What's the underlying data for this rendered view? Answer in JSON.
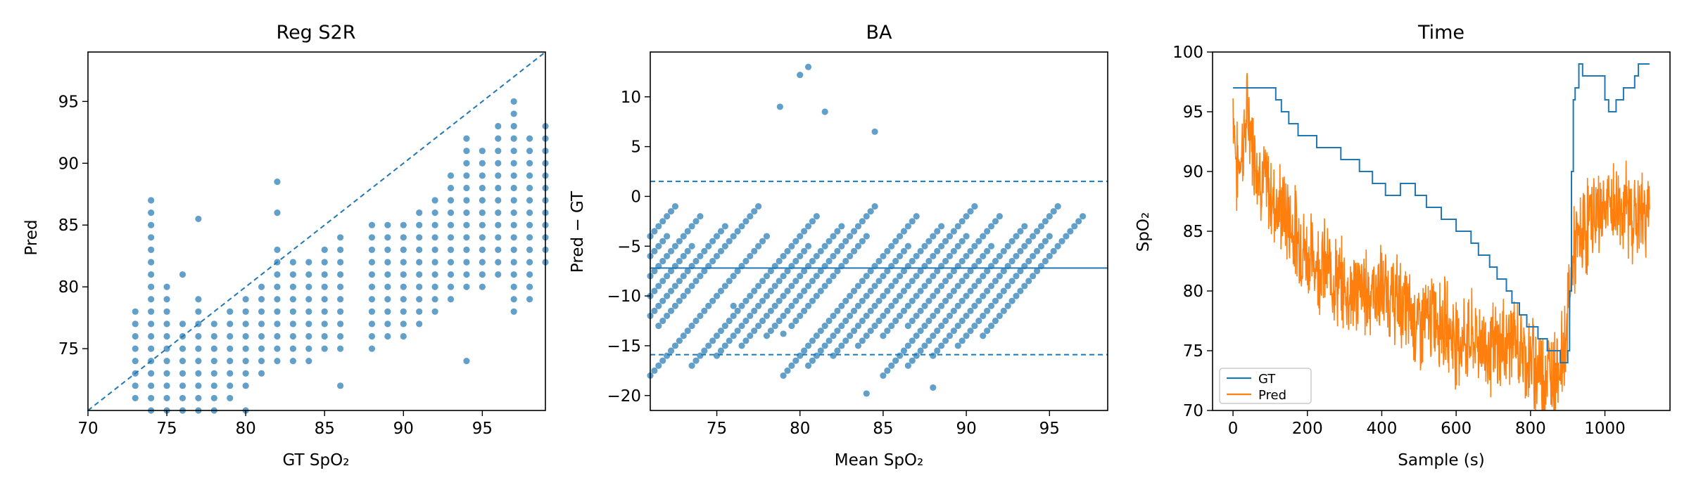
{
  "colors": {
    "series": "#1f77b4",
    "pred": "#ff7f0e",
    "frame": "#000000"
  },
  "chart_data": [
    {
      "type": "scatter",
      "title": "Reg S2R",
      "xlabel": "GT SpO₂",
      "ylabel": "Pred",
      "xlim": [
        70,
        99
      ],
      "ylim": [
        70,
        99
      ],
      "xticks": [
        "70",
        "75",
        "80",
        "85",
        "90",
        "95"
      ],
      "yticks": [
        "75",
        "80",
        "85",
        "90",
        "95"
      ],
      "identity_line": {
        "style": "dashed",
        "from": [
          70,
          70
        ],
        "to": [
          99,
          99
        ]
      },
      "series": [
        {
          "columns": [
            {
              "x": 73,
              "y": [
                71,
                72,
                73,
                74,
                75,
                76,
                77,
                78
              ]
            },
            {
              "x": 74,
              "y": [
                70,
                71,
                72,
                73,
                74,
                75,
                76,
                77,
                78,
                79,
                80,
                81,
                82,
                83,
                84,
                85,
                86,
                87
              ]
            },
            {
              "x": 75,
              "y": [
                70,
                71,
                72,
                73,
                74,
                75,
                76,
                77,
                78,
                79,
                80
              ]
            },
            {
              "x": 76,
              "y": [
                70,
                71,
                72,
                73,
                74,
                75,
                76,
                77,
                81
              ]
            },
            {
              "x": 77,
              "y": [
                70,
                71,
                72,
                73,
                74,
                75,
                76,
                77,
                78,
                79,
                85.5
              ]
            },
            {
              "x": 78,
              "y": [
                70,
                71,
                72,
                73,
                74,
                75,
                76,
                77
              ]
            },
            {
              "x": 79,
              "y": [
                71,
                72,
                73,
                74,
                75,
                76,
                77,
                78
              ]
            },
            {
              "x": 80,
              "y": [
                70,
                72,
                73,
                74,
                75,
                76,
                77,
                78,
                79
              ]
            },
            {
              "x": 81,
              "y": [
                73,
                74,
                75,
                76,
                77,
                78,
                79,
                80
              ]
            },
            {
              "x": 82,
              "y": [
                74,
                75,
                76,
                77,
                78,
                79,
                80,
                81,
                82,
                83,
                86,
                88.5
              ]
            },
            {
              "x": 83,
              "y": [
                74,
                75,
                76,
                77,
                78,
                79,
                80,
                81,
                82
              ]
            },
            {
              "x": 84,
              "y": [
                74,
                75,
                76,
                77,
                78,
                79,
                80,
                81,
                82
              ]
            },
            {
              "x": 85,
              "y": [
                75,
                76,
                77,
                78,
                79,
                80,
                81,
                82,
                83
              ]
            },
            {
              "x": 86,
              "y": [
                72,
                75,
                76,
                77,
                78,
                79,
                80,
                81,
                82,
                83,
                84
              ]
            },
            {
              "x": 88,
              "y": [
                75,
                76,
                77,
                78,
                79,
                80,
                81,
                82,
                83,
                84,
                85
              ]
            },
            {
              "x": 89,
              "y": [
                76,
                77,
                78,
                79,
                80,
                81,
                82,
                83,
                84,
                85
              ]
            },
            {
              "x": 90,
              "y": [
                76,
                77,
                78,
                79,
                80,
                81,
                82,
                83,
                84,
                85
              ]
            },
            {
              "x": 91,
              "y": [
                77,
                78,
                79,
                80,
                81,
                82,
                83,
                84,
                85,
                86
              ]
            },
            {
              "x": 92,
              "y": [
                78,
                79,
                80,
                81,
                82,
                83,
                84,
                85,
                86,
                87
              ]
            },
            {
              "x": 93,
              "y": [
                79,
                80,
                81,
                82,
                83,
                84,
                85,
                86,
                87,
                88,
                89
              ]
            },
            {
              "x": 94,
              "y": [
                74,
                80,
                81,
                82,
                83,
                84,
                85,
                86,
                87,
                88,
                89,
                90,
                91,
                92
              ]
            },
            {
              "x": 95,
              "y": [
                80,
                81,
                82,
                83,
                84,
                85,
                86,
                87,
                88,
                89,
                90,
                91
              ]
            },
            {
              "x": 96,
              "y": [
                81,
                82,
                83,
                84,
                85,
                86,
                87,
                88,
                89,
                90,
                91,
                92,
                93
              ]
            },
            {
              "x": 97,
              "y": [
                78,
                79,
                80,
                81,
                82,
                83,
                84,
                85,
                86,
                87,
                88,
                89,
                90,
                91,
                92,
                93,
                94,
                95
              ]
            },
            {
              "x": 98,
              "y": [
                79,
                80,
                81,
                82,
                83,
                84,
                85,
                86,
                87,
                88,
                89,
                90,
                91,
                92
              ]
            },
            {
              "x": 99,
              "y": [
                82,
                83,
                84,
                85,
                86,
                87,
                88,
                89,
                90,
                91,
                92,
                93
              ]
            }
          ]
        }
      ]
    },
    {
      "type": "scatter",
      "title": "BA",
      "xlabel": "Mean SpO₂",
      "ylabel": "Pred − GT",
      "xlim": [
        71,
        98.5
      ],
      "ylim": [
        -21.5,
        14.5
      ],
      "xticks": [
        "75",
        "80",
        "85",
        "90",
        "95"
      ],
      "yticks": [
        "10",
        "5",
        "0",
        "−5",
        "−10",
        "−15",
        "−20"
      ],
      "mean_diff": -7.2,
      "limits_of_agreement": [
        1.5,
        -15.9
      ],
      "diagonal_band_gts": [
        73,
        74,
        75,
        76,
        77,
        78,
        80,
        82,
        83,
        84,
        85,
        86,
        88,
        89,
        90,
        91,
        92,
        93,
        94,
        95,
        96,
        97,
        98
      ],
      "diff_spread": [
        -18,
        -1
      ],
      "outliers": [
        {
          "x": 80.5,
          "y": 13
        },
        {
          "x": 80,
          "y": 12.2
        },
        {
          "x": 81.5,
          "y": 8.5
        },
        {
          "x": 78.8,
          "y": 9
        },
        {
          "x": 84.5,
          "y": 6.5
        },
        {
          "x": 76,
          "y": -11
        },
        {
          "x": 79,
          "y": -13.8
        },
        {
          "x": 84,
          "y": -19.8
        },
        {
          "x": 88,
          "y": -19.2
        }
      ]
    },
    {
      "type": "line",
      "title": "Time",
      "xlabel": "Sample (s)",
      "ylabel": "SpO₂",
      "xlim": [
        -55,
        1175
      ],
      "ylim": [
        70,
        100
      ],
      "xticks": [
        "0",
        "200",
        "400",
        "600",
        "800",
        "1000"
      ],
      "yticks": [
        "70",
        "75",
        "80",
        "85",
        "90",
        "95",
        "100"
      ],
      "legend": "lower-left",
      "series": [
        {
          "name": "GT",
          "step": true,
          "points": [
            [
              0,
              97
            ],
            [
              110,
              97
            ],
            [
              115,
              96
            ],
            [
              130,
              95
            ],
            [
              150,
              94
            ],
            [
              175,
              93
            ],
            [
              225,
              92
            ],
            [
              290,
              91
            ],
            [
              340,
              90
            ],
            [
              375,
              89
            ],
            [
              410,
              88
            ],
            [
              450,
              89
            ],
            [
              490,
              88
            ],
            [
              520,
              87
            ],
            [
              560,
              86
            ],
            [
              580,
              86
            ],
            [
              600,
              85
            ],
            [
              640,
              84
            ],
            [
              660,
              83
            ],
            [
              690,
              82
            ],
            [
              710,
              81
            ],
            [
              735,
              80
            ],
            [
              750,
              79
            ],
            [
              770,
              78
            ],
            [
              790,
              77
            ],
            [
              820,
              76
            ],
            [
              845,
              75
            ],
            [
              880,
              74
            ],
            [
              900,
              75
            ],
            [
              905,
              80
            ],
            [
              910,
              90
            ],
            [
              915,
              96
            ],
            [
              920,
              97
            ],
            [
              930,
              99
            ],
            [
              940,
              98
            ],
            [
              1000,
              96
            ],
            [
              1010,
              95
            ],
            [
              1030,
              96
            ],
            [
              1050,
              97
            ],
            [
              1080,
              98
            ],
            [
              1090,
              99
            ],
            [
              1120,
              99
            ]
          ]
        },
        {
          "name": "Pred",
          "step": false,
          "trend": [
            [
              0,
              96
            ],
            [
              10,
              90
            ],
            [
              25,
              92
            ],
            [
              40,
              95
            ],
            [
              50,
              93
            ],
            [
              70,
              90
            ],
            [
              100,
              88
            ],
            [
              150,
              86
            ],
            [
              200,
              83
            ],
            [
              250,
              82
            ],
            [
              300,
              80
            ],
            [
              350,
              80
            ],
            [
              400,
              80
            ],
            [
              450,
              79
            ],
            [
              500,
              77
            ],
            [
              550,
              78
            ],
            [
              600,
              76
            ],
            [
              650,
              76
            ],
            [
              700,
              75
            ],
            [
              750,
              76
            ],
            [
              800,
              74
            ],
            [
              850,
              73
            ],
            [
              880,
              74
            ],
            [
              895,
              76
            ],
            [
              905,
              80
            ],
            [
              915,
              83
            ],
            [
              930,
              84
            ],
            [
              960,
              86
            ],
            [
              1000,
              87
            ],
            [
              1050,
              87
            ],
            [
              1090,
              86
            ],
            [
              1120,
              87
            ]
          ],
          "noise_amplitude": 3
        }
      ]
    }
  ]
}
